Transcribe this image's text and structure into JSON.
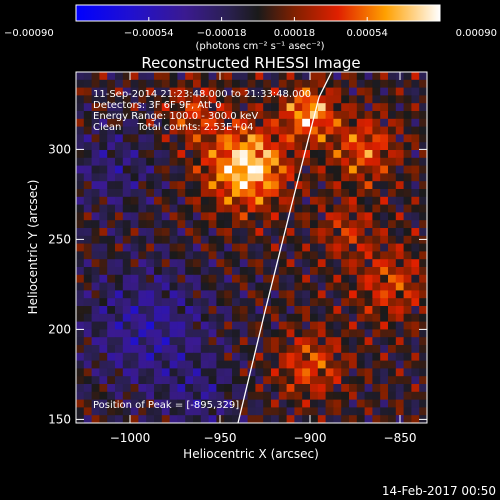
{
  "chart_data": {
    "type": "heatmap",
    "title": "Reconstructed RHESSI Image",
    "xlabel": "Heliocentric X (arcsec)",
    "ylabel": "Heliocentric Y (arcsec)",
    "xlim": [
      -1030,
      -835
    ],
    "ylim": [
      148,
      343
    ],
    "x_ticks": [
      -1000,
      -950,
      -900,
      -850
    ],
    "x_tick_labels": [
      "−1000",
      "−950",
      "−900",
      "−850"
    ],
    "y_ticks": [
      150,
      200,
      250,
      300
    ],
    "y_tick_labels": [
      "150",
      "200",
      "250",
      "300"
    ],
    "colorbar": {
      "min": -0.0009,
      "max": 0.0009,
      "ticks": [
        -0.0009,
        -0.00054,
        -0.00018,
        0.00018,
        0.00054,
        0.0009
      ],
      "tick_labels": [
        "−0.00090",
        "−0.00054",
        "−0.00018",
        "0.00018",
        "0.00054",
        "0.00090"
      ],
      "units": "(photons cm⁻² s⁻¹ asec⁻²)"
    },
    "limb_points": [
      [
        -940,
        148
      ],
      [
        -925,
        210
      ],
      [
        -910,
        270
      ],
      [
        -895,
        329
      ],
      [
        -888,
        343
      ]
    ],
    "peak": [
      -895,
      329
    ],
    "hotspots": [
      {
        "x": -935,
        "y": 290,
        "amp": 1.0,
        "r": 22
      },
      {
        "x": -900,
        "y": 320,
        "amp": 0.8,
        "r": 14
      },
      {
        "x": -870,
        "y": 300,
        "amp": 0.55,
        "r": 18
      },
      {
        "x": -855,
        "y": 225,
        "amp": 0.45,
        "r": 20
      },
      {
        "x": -900,
        "y": 180,
        "amp": 0.5,
        "r": 18
      },
      {
        "x": -965,
        "y": 320,
        "amp": 0.4,
        "r": 16
      },
      {
        "x": -880,
        "y": 255,
        "amp": 0.35,
        "r": 16
      }
    ],
    "cold_regions": [
      {
        "x": -990,
        "y": 200,
        "amp": 0.7,
        "r": 35
      },
      {
        "x": -1010,
        "y": 290,
        "amp": 0.45,
        "r": 25
      },
      {
        "x": -960,
        "y": 160,
        "amp": 0.4,
        "r": 20
      }
    ]
  },
  "info": {
    "line1": "11-Sep-2014 21:23:48.000 to 21:33:48.000",
    "line2": "Detectors: 3F 6F 9F, Att 0",
    "line3": "Energy Range: 100.0 - 300.0 keV",
    "line4": "Clean     Total counts: 2.53E+04",
    "peak_text": "Position of Peak = [-895,329]"
  },
  "footer": {
    "date": "14-Feb-2017 00:50"
  }
}
